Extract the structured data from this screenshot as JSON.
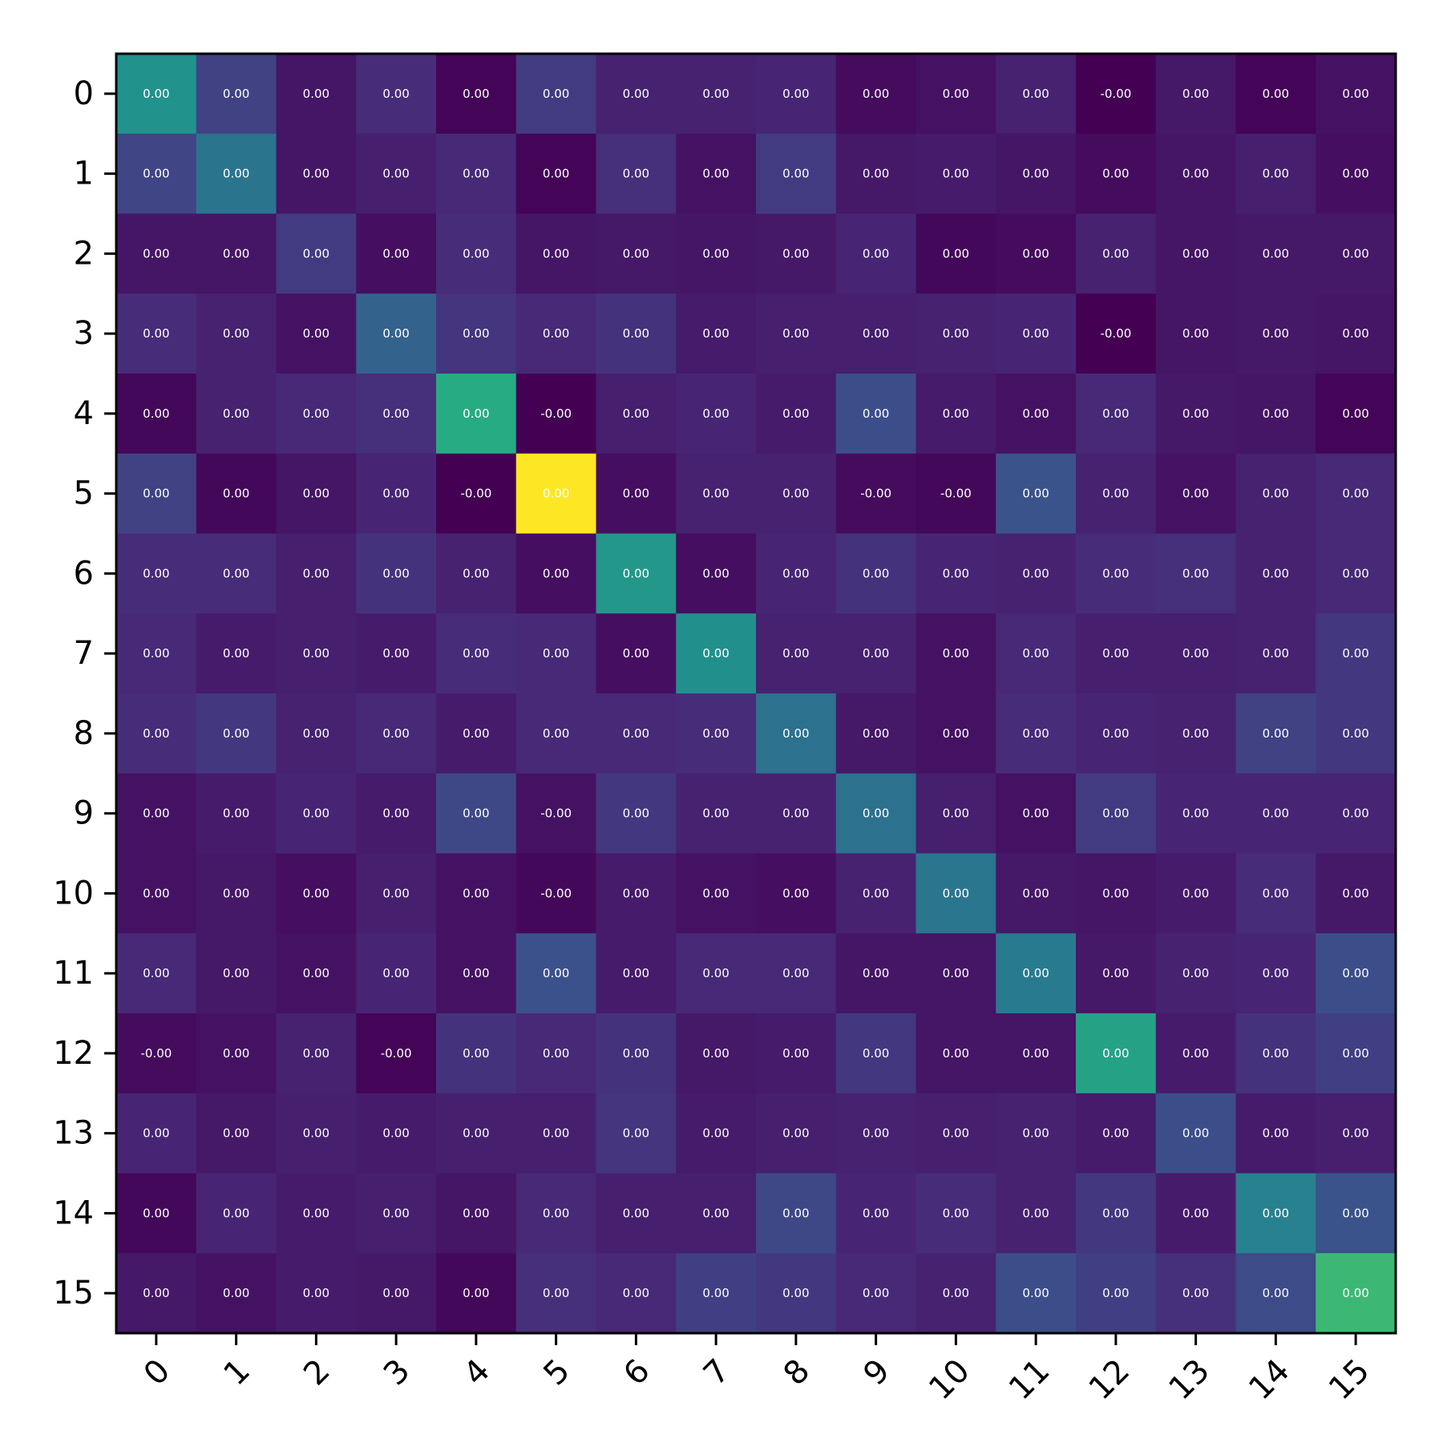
{
  "chart_data": {
    "type": "heatmap",
    "title": "",
    "xlabel": "",
    "ylabel": "",
    "x_categories": [
      "0",
      "1",
      "2",
      "3",
      "4",
      "5",
      "6",
      "7",
      "8",
      "9",
      "10",
      "11",
      "12",
      "13",
      "14",
      "15"
    ],
    "y_categories": [
      "0",
      "1",
      "2",
      "3",
      "4",
      "5",
      "6",
      "7",
      "8",
      "9",
      "10",
      "11",
      "12",
      "13",
      "14",
      "15"
    ],
    "colormap": "viridis",
    "intensity": [
      [
        0.51,
        0.2,
        0.06,
        0.13,
        0.01,
        0.18,
        0.1,
        0.1,
        0.11,
        0.03,
        0.05,
        0.1,
        0.0,
        0.07,
        0.01,
        0.05
      ],
      [
        0.21,
        0.39,
        0.06,
        0.09,
        0.12,
        0.01,
        0.14,
        0.05,
        0.18,
        0.07,
        0.08,
        0.06,
        0.03,
        0.06,
        0.09,
        0.04
      ],
      [
        0.06,
        0.06,
        0.18,
        0.04,
        0.13,
        0.06,
        0.07,
        0.06,
        0.07,
        0.11,
        0.02,
        0.03,
        0.1,
        0.06,
        0.07,
        0.07
      ],
      [
        0.13,
        0.1,
        0.05,
        0.32,
        0.16,
        0.12,
        0.15,
        0.08,
        0.09,
        0.09,
        0.1,
        0.11,
        -0.02,
        0.06,
        0.07,
        0.06
      ],
      [
        0.02,
        0.1,
        0.12,
        0.14,
        0.62,
        0.0,
        0.09,
        0.11,
        0.08,
        0.24,
        0.08,
        0.05,
        0.12,
        0.07,
        0.06,
        0.01
      ],
      [
        0.2,
        0.02,
        0.06,
        0.11,
        0.0,
        1.0,
        0.04,
        0.1,
        0.1,
        0.03,
        0.02,
        0.26,
        0.1,
        0.05,
        0.1,
        0.12
      ],
      [
        0.13,
        0.13,
        0.09,
        0.15,
        0.1,
        0.04,
        0.53,
        0.04,
        0.11,
        0.15,
        0.11,
        0.1,
        0.13,
        0.14,
        0.1,
        0.12
      ],
      [
        0.12,
        0.08,
        0.09,
        0.08,
        0.13,
        0.12,
        0.04,
        0.5,
        0.1,
        0.1,
        0.05,
        0.12,
        0.09,
        0.09,
        0.1,
        0.17
      ],
      [
        0.13,
        0.17,
        0.1,
        0.12,
        0.08,
        0.12,
        0.12,
        0.13,
        0.38,
        0.07,
        0.05,
        0.13,
        0.11,
        0.1,
        0.2,
        0.17
      ],
      [
        0.05,
        0.08,
        0.11,
        0.08,
        0.22,
        0.05,
        0.17,
        0.1,
        0.1,
        0.38,
        0.09,
        0.05,
        0.18,
        0.11,
        0.11,
        0.11
      ],
      [
        0.05,
        0.07,
        0.04,
        0.09,
        0.05,
        0.02,
        0.08,
        0.05,
        0.04,
        0.1,
        0.4,
        0.07,
        0.06,
        0.08,
        0.13,
        0.07
      ],
      [
        0.12,
        0.07,
        0.05,
        0.11,
        0.05,
        0.25,
        0.08,
        0.12,
        0.12,
        0.06,
        0.06,
        0.42,
        0.07,
        0.1,
        0.11,
        0.24
      ],
      [
        0.03,
        0.05,
        0.1,
        0.01,
        0.15,
        0.12,
        0.15,
        0.07,
        0.08,
        0.17,
        0.06,
        0.06,
        0.58,
        0.08,
        0.15,
        0.19
      ],
      [
        0.11,
        0.07,
        0.09,
        0.08,
        0.09,
        0.09,
        0.16,
        0.08,
        0.09,
        0.1,
        0.09,
        0.1,
        0.08,
        0.24,
        0.08,
        0.09
      ],
      [
        0.02,
        0.11,
        0.08,
        0.09,
        0.06,
        0.12,
        0.09,
        0.09,
        0.22,
        0.11,
        0.13,
        0.1,
        0.17,
        0.08,
        0.44,
        0.26
      ],
      [
        0.07,
        0.05,
        0.08,
        0.07,
        0.02,
        0.14,
        0.12,
        0.19,
        0.17,
        0.12,
        0.1,
        0.24,
        0.19,
        0.14,
        0.23,
        0.68
      ]
    ],
    "cell_labels": [
      [
        "0.00",
        "0.00",
        "0.00",
        "0.00",
        "0.00",
        "0.00",
        "0.00",
        "0.00",
        "0.00",
        "0.00",
        "0.00",
        "0.00",
        "-0.00",
        "0.00",
        "0.00",
        "0.00"
      ],
      [
        "0.00",
        "0.00",
        "0.00",
        "0.00",
        "0.00",
        "0.00",
        "0.00",
        "0.00",
        "0.00",
        "0.00",
        "0.00",
        "0.00",
        "0.00",
        "0.00",
        "0.00",
        "0.00"
      ],
      [
        "0.00",
        "0.00",
        "0.00",
        "0.00",
        "0.00",
        "0.00",
        "0.00",
        "0.00",
        "0.00",
        "0.00",
        "0.00",
        "0.00",
        "0.00",
        "0.00",
        "0.00",
        "0.00"
      ],
      [
        "0.00",
        "0.00",
        "0.00",
        "0.00",
        "0.00",
        "0.00",
        "0.00",
        "0.00",
        "0.00",
        "0.00",
        "0.00",
        "0.00",
        "-0.00",
        "0.00",
        "0.00",
        "0.00"
      ],
      [
        "0.00",
        "0.00",
        "0.00",
        "0.00",
        "0.00",
        "-0.00",
        "0.00",
        "0.00",
        "0.00",
        "0.00",
        "0.00",
        "0.00",
        "0.00",
        "0.00",
        "0.00",
        "0.00"
      ],
      [
        "0.00",
        "0.00",
        "0.00",
        "0.00",
        "-0.00",
        "0.00",
        "0.00",
        "0.00",
        "0.00",
        "-0.00",
        "-0.00",
        "0.00",
        "0.00",
        "0.00",
        "0.00",
        "0.00"
      ],
      [
        "0.00",
        "0.00",
        "0.00",
        "0.00",
        "0.00",
        "0.00",
        "0.00",
        "0.00",
        "0.00",
        "0.00",
        "0.00",
        "0.00",
        "0.00",
        "0.00",
        "0.00",
        "0.00"
      ],
      [
        "0.00",
        "0.00",
        "0.00",
        "0.00",
        "0.00",
        "0.00",
        "0.00",
        "0.00",
        "0.00",
        "0.00",
        "0.00",
        "0.00",
        "0.00",
        "0.00",
        "0.00",
        "0.00"
      ],
      [
        "0.00",
        "0.00",
        "0.00",
        "0.00",
        "0.00",
        "0.00",
        "0.00",
        "0.00",
        "0.00",
        "0.00",
        "0.00",
        "0.00",
        "0.00",
        "0.00",
        "0.00",
        "0.00"
      ],
      [
        "0.00",
        "0.00",
        "0.00",
        "0.00",
        "0.00",
        "-0.00",
        "0.00",
        "0.00",
        "0.00",
        "0.00",
        "0.00",
        "0.00",
        "0.00",
        "0.00",
        "0.00",
        "0.00"
      ],
      [
        "0.00",
        "0.00",
        "0.00",
        "0.00",
        "0.00",
        "-0.00",
        "0.00",
        "0.00",
        "0.00",
        "0.00",
        "0.00",
        "0.00",
        "0.00",
        "0.00",
        "0.00",
        "0.00"
      ],
      [
        "0.00",
        "0.00",
        "0.00",
        "0.00",
        "0.00",
        "0.00",
        "0.00",
        "0.00",
        "0.00",
        "0.00",
        "0.00",
        "0.00",
        "0.00",
        "0.00",
        "0.00",
        "0.00"
      ],
      [
        "-0.00",
        "0.00",
        "0.00",
        "-0.00",
        "0.00",
        "0.00",
        "0.00",
        "0.00",
        "0.00",
        "0.00",
        "0.00",
        "0.00",
        "0.00",
        "0.00",
        "0.00",
        "0.00"
      ],
      [
        "0.00",
        "0.00",
        "0.00",
        "0.00",
        "0.00",
        "0.00",
        "0.00",
        "0.00",
        "0.00",
        "0.00",
        "0.00",
        "0.00",
        "0.00",
        "0.00",
        "0.00",
        "0.00"
      ],
      [
        "0.00",
        "0.00",
        "0.00",
        "0.00",
        "0.00",
        "0.00",
        "0.00",
        "0.00",
        "0.00",
        "0.00",
        "0.00",
        "0.00",
        "0.00",
        "0.00",
        "0.00",
        "0.00"
      ],
      [
        "0.00",
        "0.00",
        "0.00",
        "0.00",
        "0.00",
        "0.00",
        "0.00",
        "0.00",
        "0.00",
        "0.00",
        "0.00",
        "0.00",
        "0.00",
        "0.00",
        "0.00",
        "0.00"
      ]
    ],
    "x_tick_rotation_deg": 45,
    "colorbar": false,
    "grid": false
  }
}
